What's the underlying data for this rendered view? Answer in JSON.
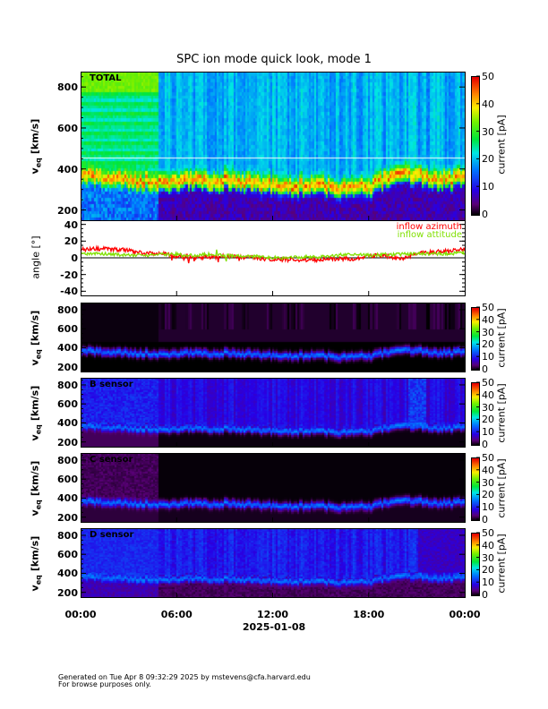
{
  "title": "SPC ion mode quick look, mode 1",
  "x_axis": {
    "ticks": [
      "00:00",
      "06:00",
      "12:00",
      "18:00",
      "00:00"
    ],
    "date": "2025-01-08"
  },
  "footer": {
    "line1": "Generated on Tue Apr  8 09:32:29 2025 by mstevens@cfa.harvard.edu",
    "line2": "For browse purposes only."
  },
  "colors": {
    "azimuth": "#ff0000",
    "attitude": "#80e000"
  },
  "panels": [
    {
      "id": "total",
      "label": "TOTAL",
      "ylabel": "v",
      "ylabel_sub": "eq",
      "ylabel_unit": "[km/s]",
      "yticks": [
        "200",
        "400",
        "600",
        "800"
      ],
      "cb_title": "current [pA]",
      "cb_ticks": [
        "0",
        "10",
        "20",
        "30",
        "40",
        "50"
      ]
    },
    {
      "id": "a",
      "label": "",
      "ylabel": "v",
      "ylabel_sub": "eq",
      "ylabel_unit": "[km/s]",
      "yticks": [
        "200",
        "400",
        "600",
        "800"
      ],
      "cb_title": "current [pA]",
      "cb_ticks": [
        "0",
        "10",
        "20",
        "30",
        "40",
        "50"
      ]
    },
    {
      "id": "b",
      "label": "B sensor",
      "ylabel": "v",
      "ylabel_sub": "eq",
      "ylabel_unit": "[km/s]",
      "yticks": [
        "200",
        "400",
        "600",
        "800"
      ],
      "cb_title": "current [pA]",
      "cb_ticks": [
        "0",
        "10",
        "20",
        "30",
        "40",
        "50"
      ]
    },
    {
      "id": "c",
      "label": "C sensor",
      "ylabel": "v",
      "ylabel_sub": "eq",
      "ylabel_unit": "[km/s]",
      "yticks": [
        "200",
        "400",
        "600",
        "800"
      ],
      "cb_title": "current [pA]",
      "cb_ticks": [
        "0",
        "10",
        "20",
        "30",
        "40",
        "50"
      ]
    },
    {
      "id": "d",
      "label": "D sensor",
      "ylabel": "v",
      "ylabel_sub": "eq",
      "ylabel_unit": "[km/s]",
      "yticks": [
        "200",
        "400",
        "600",
        "800"
      ],
      "cb_title": "current [pA]",
      "cb_ticks": [
        "0",
        "10",
        "20",
        "30",
        "40",
        "50"
      ]
    }
  ],
  "angle_panel": {
    "ylabel": "angle [°]",
    "yticks": [
      "40",
      "20",
      "0",
      "-20",
      "-40"
    ],
    "legend": [
      "inflow azimuth",
      "inflow attitude"
    ]
  },
  "chart_data": {
    "type": "heatmap",
    "title": "SPC ion mode quick look, mode 1",
    "xlabel": "2025-01-08",
    "x_hours": [
      0,
      1,
      2,
      3,
      4,
      5,
      6,
      7,
      8,
      9,
      10,
      11,
      12,
      13,
      14,
      15,
      16,
      17,
      18,
      19,
      20,
      21,
      22,
      23,
      24
    ],
    "spectrogram_ylim_kms": [
      150,
      875
    ],
    "colorbar_range_pA": [
      0,
      50
    ],
    "peak_velocity_kms": [
      370,
      365,
      360,
      350,
      345,
      330,
      345,
      355,
      340,
      350,
      345,
      330,
      325,
      320,
      320,
      330,
      310,
      315,
      320,
      355,
      380,
      375,
      360,
      350,
      370
    ],
    "angle": {
      "ylim": [
        -45,
        45
      ],
      "series": [
        {
          "name": "inflow azimuth",
          "values": [
            10,
            11,
            10,
            9,
            5,
            6,
            2,
            0,
            1,
            2,
            1,
            0,
            -2,
            -2,
            -3,
            -2,
            -1,
            -1,
            2,
            3,
            -2,
            6,
            7,
            8,
            10
          ]
        },
        {
          "name": "inflow attitude",
          "values": [
            5,
            5,
            4,
            3,
            3,
            4,
            4,
            3,
            4,
            3,
            2,
            2,
            0,
            0,
            1,
            1,
            3,
            4,
            3,
            4,
            4,
            5,
            5,
            5,
            6
          ]
        }
      ]
    }
  }
}
